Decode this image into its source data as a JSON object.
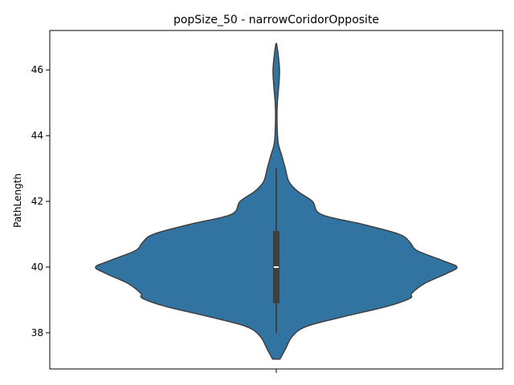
{
  "chart_data": {
    "type": "violin",
    "title": "popSize_50 - narrowCoridorOpposite",
    "xlabel": "",
    "ylabel": "PathLength",
    "ylim": [
      36.9,
      47.2
    ],
    "yticks": [
      38,
      40,
      42,
      44,
      46
    ],
    "grid": false,
    "color": "#3274a1",
    "edge_color": "#3f3f3f",
    "violin_profile": [
      {
        "y": 37.2,
        "w": 0.02
      },
      {
        "y": 37.5,
        "w": 0.05
      },
      {
        "y": 37.9,
        "w": 0.09
      },
      {
        "y": 38.2,
        "w": 0.17
      },
      {
        "y": 38.5,
        "w": 0.38
      },
      {
        "y": 38.8,
        "w": 0.61
      },
      {
        "y": 39.05,
        "w": 0.74
      },
      {
        "y": 39.2,
        "w": 0.75
      },
      {
        "y": 39.5,
        "w": 0.82
      },
      {
        "y": 39.8,
        "w": 0.94
      },
      {
        "y": 40.0,
        "w": 1.0
      },
      {
        "y": 40.2,
        "w": 0.92
      },
      {
        "y": 40.5,
        "w": 0.78
      },
      {
        "y": 40.75,
        "w": 0.74
      },
      {
        "y": 41.0,
        "w": 0.68
      },
      {
        "y": 41.3,
        "w": 0.48
      },
      {
        "y": 41.6,
        "w": 0.25
      },
      {
        "y": 42.0,
        "w": 0.2
      },
      {
        "y": 42.3,
        "w": 0.12
      },
      {
        "y": 42.6,
        "w": 0.07
      },
      {
        "y": 43.0,
        "w": 0.05
      },
      {
        "y": 43.4,
        "w": 0.03
      },
      {
        "y": 43.8,
        "w": 0.01
      },
      {
        "y": 44.5,
        "w": 0.004
      },
      {
        "y": 45.0,
        "w": 0.006
      },
      {
        "y": 45.6,
        "w": 0.015
      },
      {
        "y": 46.0,
        "w": 0.018
      },
      {
        "y": 46.4,
        "w": 0.012
      },
      {
        "y": 46.8,
        "w": 0.002
      }
    ],
    "box": {
      "whisker_low": 38.0,
      "q1": 38.9,
      "median": 40.0,
      "q3": 41.1,
      "whisker_high": 43.0
    }
  }
}
